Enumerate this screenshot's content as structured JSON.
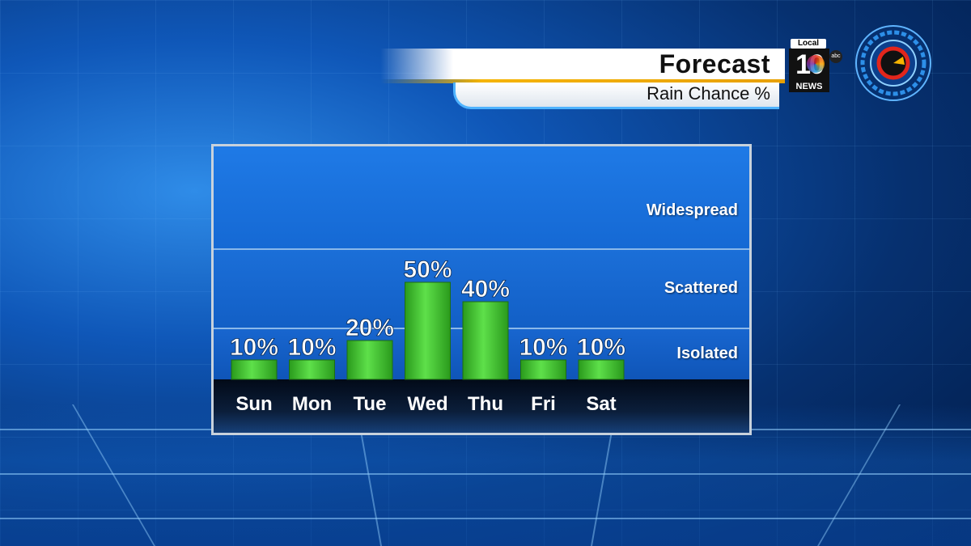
{
  "header": {
    "title": "Forecast",
    "subtitle": "Rain Chance %"
  },
  "logo": {
    "local": "Local",
    "number": "10",
    "news": "NEWS",
    "network": "abc"
  },
  "colors": {
    "bar": "#3cc62a",
    "accent_stripe": "#f5b400",
    "panel_border": "#c8d2dc"
  },
  "chart_data": {
    "type": "bar",
    "title": "Rain Chance %",
    "categories": [
      "Sun",
      "Mon",
      "Tue",
      "Wed",
      "Thu",
      "Fri",
      "Sat"
    ],
    "values": [
      10,
      10,
      20,
      50,
      40,
      10,
      10
    ],
    "value_labels": [
      "10%",
      "10%",
      "20%",
      "50%",
      "40%",
      "10%",
      "10%"
    ],
    "unit": "%",
    "ylim": [
      0,
      100
    ],
    "bands": [
      "Widespread",
      "Scattered",
      "Isolated"
    ],
    "grid": false,
    "legend": "none"
  }
}
